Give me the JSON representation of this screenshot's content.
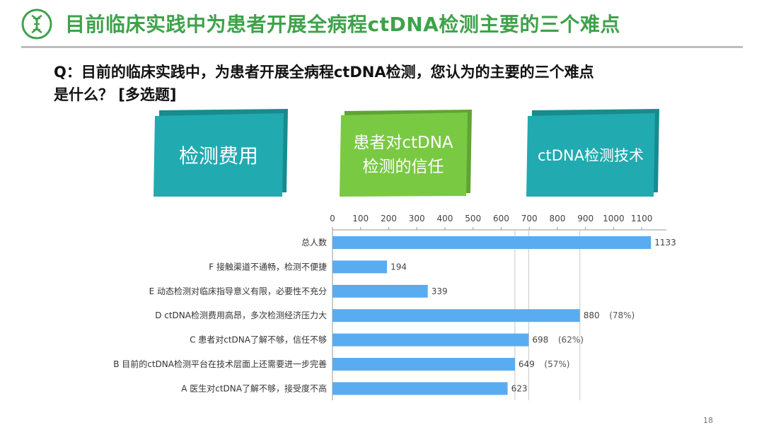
{
  "header": {
    "title": "目前临床实践中为患者开展全病程ctDNA检测主要的三个难点"
  },
  "question": "Q：目前的临床实践中，为患者开展全病程ctDNA检测，您认为的主要的三个难点\n是什么？ [多选题]",
  "cards": [
    {
      "label": "检测费用",
      "color": "#21aab0",
      "shadow": "#178b8e"
    },
    {
      "label": "患者对ctDNA\n检测的信任",
      "color": "#7ac943",
      "shadow": "#5ea532"
    },
    {
      "label": "ctDNA检测技术",
      "color": "#21aab0",
      "shadow": "#178b8e"
    }
  ],
  "chart_data": {
    "type": "bar",
    "orientation": "horizontal",
    "categories": [
      "总人数",
      "F 接触渠道不通畅，检测不便捷",
      "E 动态检测对临床指导意义有限，必要性不充分",
      "D ctDNA检测费用高昂，多次检测经济压力大",
      "C 患者对ctDNA了解不够，信任不够",
      "B 目前的ctDNA检测平台在技术层面上还需要进一步完善",
      "A 医生对ctDNA了解不够，接受度不高"
    ],
    "values": [
      1133,
      194,
      339,
      880,
      698,
      649,
      623
    ],
    "value_labels": [
      "1133",
      "194",
      "339",
      "880",
      "698",
      "649",
      "623"
    ],
    "percent_labels": [
      "",
      "",
      "",
      "(78%)",
      "(62%)",
      "(57%)",
      ""
    ],
    "xlim": [
      0,
      1150
    ],
    "xticks": [
      0,
      100,
      200,
      300,
      400,
      500,
      600,
      700,
      800,
      900,
      1000,
      1100
    ],
    "axis_position": "top",
    "highlighted": [
      "D ctDNA检测费用高昂，多次检测经济压力大",
      "C 患者对ctDNA了解不够，信任不够",
      "B 目前的ctDNA检测平台在技术层面上还需要进一步完善"
    ],
    "bar_color": "#5aacf0"
  },
  "footer": {
    "page_number": "18"
  }
}
